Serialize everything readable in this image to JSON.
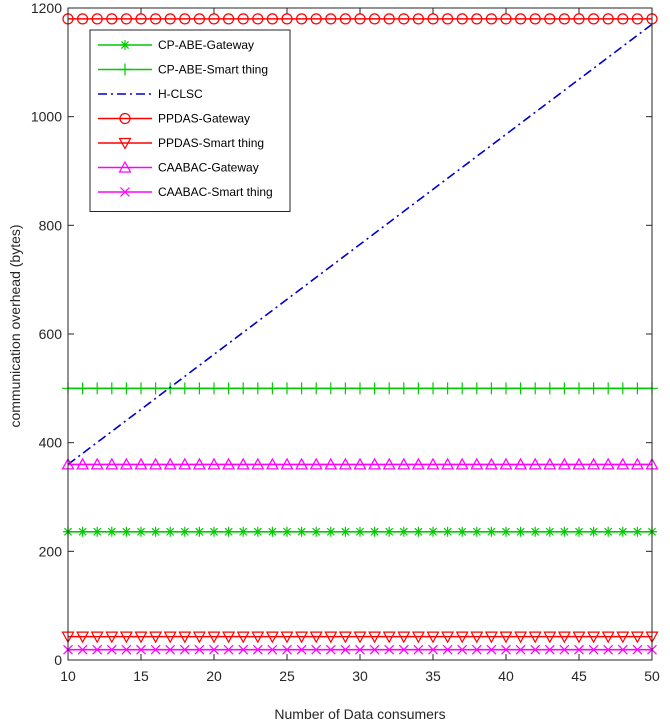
{
  "chart_data": {
    "type": "line",
    "title": "",
    "xlabel": "Number of Data consumers",
    "ylabel": "communication overhead (bytes)",
    "xlim": [
      10,
      50
    ],
    "ylim": [
      0,
      1200
    ],
    "xticks": [
      10,
      15,
      20,
      25,
      30,
      35,
      40,
      45,
      50
    ],
    "yticks": [
      0,
      200,
      400,
      600,
      800,
      1000,
      1200
    ],
    "grid": false,
    "legend_position": "top-left",
    "x": [
      10,
      11,
      12,
      13,
      14,
      15,
      16,
      17,
      18,
      19,
      20,
      21,
      22,
      23,
      24,
      25,
      26,
      27,
      28,
      29,
      30,
      31,
      32,
      33,
      34,
      35,
      36,
      37,
      38,
      39,
      40,
      41,
      42,
      43,
      44,
      45,
      46,
      47,
      48,
      49,
      50
    ],
    "series": [
      {
        "name": "CP-ABE-Gateway",
        "marker": "asterisk",
        "line_style": "solid",
        "color": "#00cc00",
        "start": 236,
        "end": 236
      },
      {
        "name": "CP-ABE-Smart thing",
        "marker": "plus",
        "line_style": "solid",
        "color": "#00cc00",
        "start": 500,
        "end": 500
      },
      {
        "name": "H-CLSC",
        "marker": "none",
        "line_style": "dashdot",
        "color": "#0000cc",
        "start": 360,
        "end": 1170
      },
      {
        "name": "PPDAS-Gateway",
        "marker": "circle",
        "line_style": "solid",
        "color": "#ff0000",
        "start": 1180,
        "end": 1180
      },
      {
        "name": "PPDAS-Smart thing",
        "marker": "triangle-down",
        "line_style": "solid",
        "color": "#ff0000",
        "start": 43,
        "end": 43
      },
      {
        "name": "CAABAC-Gateway",
        "marker": "triangle-up",
        "line_style": "solid",
        "color": "#ff00ff",
        "start": 360,
        "end": 360
      },
      {
        "name": "CAABAC-Smart thing",
        "marker": "x",
        "line_style": "solid",
        "color": "#ff00ff",
        "start": 19,
        "end": 19
      }
    ]
  }
}
